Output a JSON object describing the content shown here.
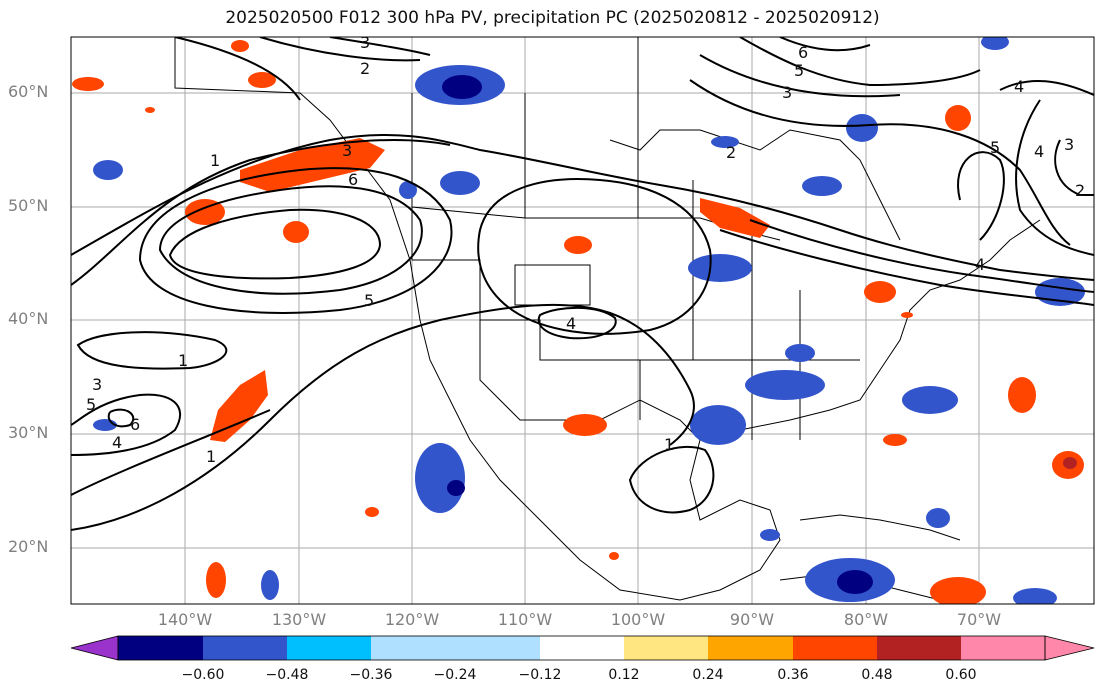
{
  "title": "2025020500 F012 300 hPa PV, precipitation PC (2025020812 - 2025020912)",
  "lat_labels": [
    "60°N",
    "50°N",
    "40°N",
    "30°N",
    "20°N"
  ],
  "lon_labels": [
    "140°W",
    "130°W",
    "120°W",
    "110°W",
    "100°W",
    "90°W",
    "80°W",
    "70°W"
  ],
  "contour_labels": [
    "3",
    "2",
    "1",
    "3",
    "6",
    "5",
    "4",
    "1",
    "3",
    "5",
    "4",
    "1",
    "1",
    "6",
    "5",
    "3",
    "4",
    "5",
    "3",
    "2",
    "4",
    "4",
    "2",
    "6"
  ],
  "colorbar": {
    "ticks": [
      "−0.60",
      "−0.48",
      "−0.36",
      "−0.24",
      "−0.12",
      "0.12",
      "0.24",
      "0.36",
      "0.48",
      "0.60"
    ],
    "colors": [
      "#9933cc",
      "#000080",
      "#3355cc",
      "#00bfff",
      "#b0e0ff",
      "#ffffff",
      "#ffe680",
      "#ffa500",
      "#ff4500",
      "#b22222",
      "#ff88aa"
    ]
  },
  "field_colors": {
    "positive": "#ff4500",
    "negative": "#3355cc",
    "strong_negative": "#000080",
    "strong_positive": "#b22222"
  }
}
